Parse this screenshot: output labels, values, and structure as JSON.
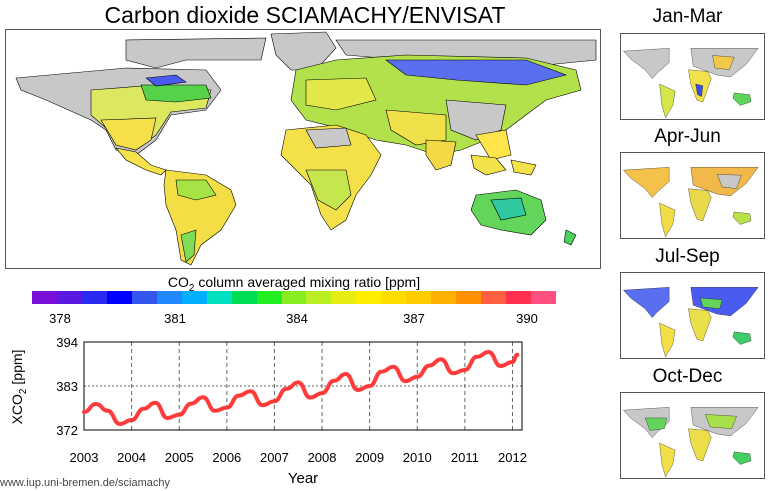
{
  "title": "Carbon dioxide SCIAMACHY/ENVISAT",
  "seasons": [
    "Jan-Mar",
    "Apr-Jun",
    "Jul-Sep",
    "Oct-Dec"
  ],
  "colorbar": {
    "label_main": "CO",
    "label_sub": "2",
    "label_rest": " column averaged mixing ratio [ppm]",
    "ticks": [
      "378",
      "381",
      "384",
      "387",
      "390"
    ],
    "colors": [
      "#7a10d8",
      "#5a18e0",
      "#2a2af0",
      "#0000ff",
      "#3355ee",
      "#2288ff",
      "#00b0ff",
      "#00e0c0",
      "#00dd55",
      "#22ee22",
      "#88ee22",
      "#bbee22",
      "#e5ee10",
      "#ffee00",
      "#ffdd00",
      "#ffcc00",
      "#ffb000",
      "#ff9000",
      "#ff6040",
      "#ff3050",
      "#ff5080"
    ]
  },
  "ylabel": {
    "main": "XCO",
    "sub": "2",
    "rest": " [ppm]"
  },
  "xlabel": "Year",
  "url": "www.iup.uni-bremen.de/sciamachy",
  "chart_data": {
    "type": "line",
    "title": "",
    "xlabel": "Year",
    "ylabel": "XCO2 [ppm]",
    "xlim": [
      2003,
      2012.2
    ],
    "ylim": [
      372,
      394
    ],
    "yticks": [
      372,
      383,
      394
    ],
    "xticks": [
      2003,
      2004,
      2005,
      2006,
      2007,
      2008,
      2009,
      2010,
      2011,
      2012
    ],
    "grid": true,
    "series": [
      {
        "color": "#ff3b3b",
        "x": [
          2003.0,
          2003.25,
          2003.5,
          2003.75,
          2004.0,
          2004.25,
          2004.5,
          2004.75,
          2005.0,
          2005.25,
          2005.5,
          2005.75,
          2006.0,
          2006.25,
          2006.5,
          2006.75,
          2007.0,
          2007.25,
          2007.5,
          2007.75,
          2008.0,
          2008.25,
          2008.5,
          2008.75,
          2009.0,
          2009.25,
          2009.5,
          2009.75,
          2010.0,
          2010.25,
          2010.5,
          2010.75,
          2011.0,
          2011.25,
          2011.5,
          2011.75,
          2012.0,
          2012.1
        ],
        "y": [
          376.5,
          378.5,
          376.8,
          373.5,
          374.5,
          377.3,
          378.8,
          375.0,
          375.8,
          378.6,
          380.2,
          376.8,
          377.6,
          380.6,
          381.7,
          378.2,
          379.2,
          382.3,
          383.9,
          380.1,
          381.2,
          384.3,
          386.0,
          382.0,
          383.0,
          386.6,
          387.8,
          384.2,
          385.3,
          388.1,
          389.7,
          386.2,
          387.0,
          390.3,
          391.5,
          388.0,
          389.0,
          390.8
        ]
      }
    ]
  }
}
